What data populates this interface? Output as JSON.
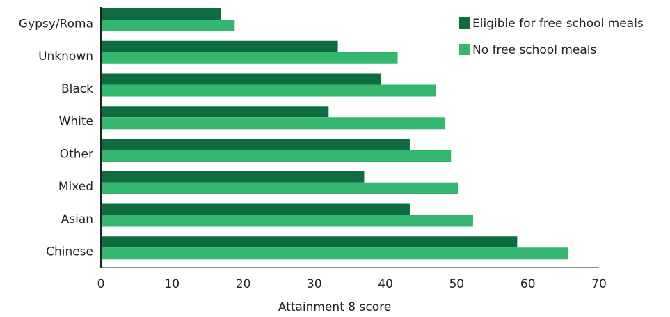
{
  "chart_data": {
    "type": "bar",
    "orientation": "horizontal",
    "x_label": "Attainment 8 score",
    "categories": [
      "Gypsy/Roma",
      "Unknown",
      "Black",
      "White",
      "Other",
      "Mixed",
      "Asian",
      "Chinese"
    ],
    "series": [
      {
        "name": "Eligible for free school meals",
        "color": "#0f6b40",
        "values": [
          16.9,
          33.3,
          39.4,
          32.0,
          43.4,
          37.0,
          43.4,
          58.5
        ]
      },
      {
        "name": "No free school meals",
        "color": "#35b66f",
        "values": [
          18.8,
          41.7,
          47.1,
          48.4,
          49.2,
          50.2,
          52.3,
          65.6
        ]
      }
    ],
    "xlim": [
      0,
      70
    ],
    "xticks": [
      0,
      10,
      20,
      30,
      40,
      50,
      60,
      70
    ],
    "grid": false,
    "legend": "top-right"
  }
}
